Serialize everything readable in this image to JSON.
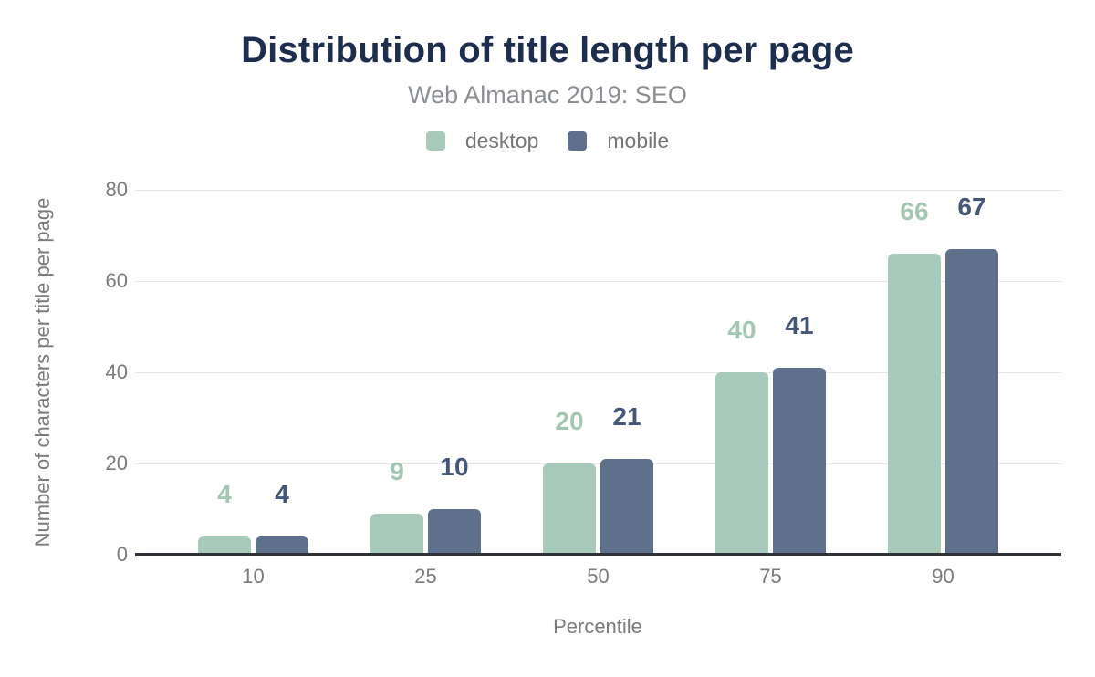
{
  "title": "Distribution of title length per page",
  "subtitle": "Web Almanac 2019: SEO",
  "chart_data": {
    "type": "bar",
    "title": "Distribution of title length per page",
    "subtitle": "Web Almanac 2019: SEO",
    "categories": [
      "10",
      "25",
      "50",
      "75",
      "90"
    ],
    "series": [
      {
        "name": "desktop",
        "values": [
          4,
          9,
          20,
          40,
          66
        ],
        "color": "#a8cabb",
        "label_color": "#a3c7b3"
      },
      {
        "name": "mobile",
        "values": [
          4,
          10,
          21,
          41,
          67
        ],
        "color": "#5f708d",
        "label_color": "#44567a"
      }
    ],
    "xlabel": "Percentile",
    "ylabel": "Number of characters per title per page",
    "ylim": [
      0,
      80
    ],
    "yticks": [
      0,
      20,
      40,
      60,
      80
    ],
    "grid": "horizontal",
    "legend_position": "top",
    "show_value_labels": true
  },
  "colors": {
    "title_text": "#1d2d4e",
    "subtitle_text": "#8b8f93",
    "axis_text": "#7b7b7b",
    "legend_text": "#757575",
    "gridline": "#e7e7e7",
    "axis_line": "#2f3138",
    "background": "#ffffff"
  }
}
